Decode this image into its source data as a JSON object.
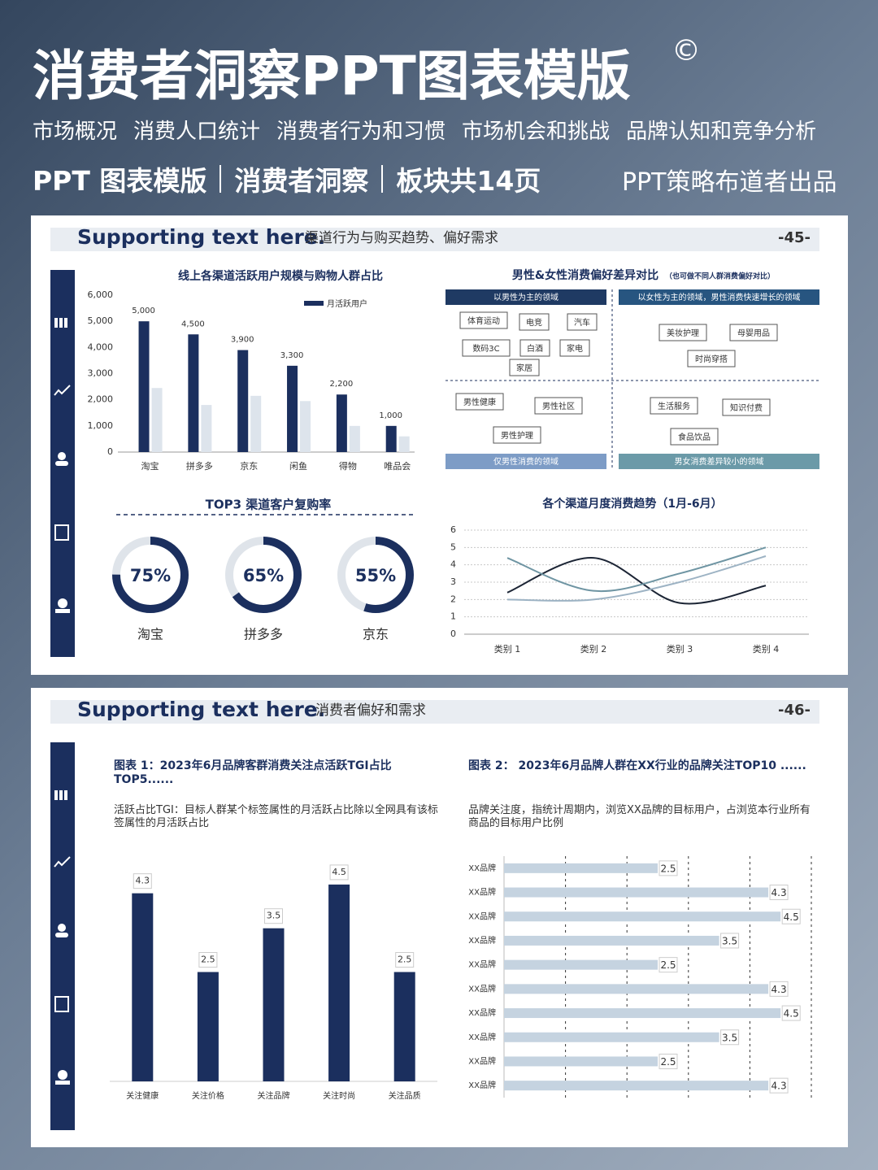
{
  "header": {
    "title": "消费者洞察PPT图表模版",
    "mark": "©",
    "topics": [
      "市场概况",
      "消费人口统计",
      "消费者行为和习惯",
      "市场机会和挑战",
      "品牌认知和竞争分析"
    ],
    "tags": [
      "PPT 图表模版",
      "消费者洞察",
      "板块共14页"
    ],
    "credit": "PPT策略布道者出品"
  },
  "slides": [
    {
      "heading": "Supporting text here.",
      "subheading": "渠道行为与购买趋势、偏好需求",
      "page": "-45-"
    },
    {
      "heading": "Supporting text here.",
      "subheading": "消费者偏好和需求",
      "page": "-46-"
    }
  ],
  "matrix": {
    "title": "男性&女性消费偏好差异对比",
    "note": "（也可做不同人群消费偏好对比）",
    "quadrants": [
      {
        "label": "以男性为主的领域",
        "items": [
          "体育运动",
          "电竞",
          "汽车",
          "数码3C",
          "白酒",
          "家电",
          "家居"
        ]
      },
      {
        "label": "以女性为主的领域，男性消费快速增长的领域",
        "items": [
          "美妆护理",
          "母婴用品",
          "时尚穿搭"
        ]
      },
      {
        "label": "仅男性消费的领域",
        "items": [
          "男性健康",
          "男性社区",
          "男性护理"
        ]
      },
      {
        "label": "男女消费差异较小的领域",
        "items": [
          "生活服务",
          "知识付费",
          "食品饮品"
        ]
      }
    ]
  },
  "chart_data": [
    {
      "type": "bar",
      "title": "线上各渠道活跃用户规模与购物人群占比",
      "categories": [
        "淘宝",
        "拼多多",
        "京东",
        "闲鱼",
        "得物",
        "唯品会"
      ],
      "series": [
        {
          "name": "月活跃用户",
          "color": "#1b2f5e",
          "values": [
            5000,
            4500,
            3900,
            3300,
            2200,
            1000
          ],
          "value_labels": [
            "5,000",
            "4,500",
            "3,900",
            "3,300",
            "2,200",
            "1,000"
          ]
        },
        {
          "color": "#dde4ec",
          "values": [
            2450,
            1800,
            2150,
            1950,
            1000,
            600
          ]
        }
      ],
      "ylim": [
        0,
        6000
      ],
      "yticks": [
        0,
        {
          "value": 1000,
          "label": "1,000"
        },
        {
          "value": 2000,
          "label": "2,000"
        },
        {
          "value": 3000,
          "label": "3,000"
        },
        {
          "value": 4000,
          "label": "4,000"
        },
        {
          "value": 5000,
          "label": "5,000"
        },
        {
          "value": 6000,
          "label": "6,000"
        }
      ]
    },
    {
      "type": "donut",
      "title": "TOP3 渠道客户复购率",
      "categories": [
        "淘宝",
        "拼多多",
        "京东"
      ],
      "values": [
        75,
        65,
        55
      ],
      "value_labels": [
        "75%",
        "65%",
        "55%"
      ],
      "color": "#1b2f5e"
    },
    {
      "type": "line",
      "title": "各个渠道月度消费趋势（1月-6月）",
      "categories": [
        "类别 1",
        "类别 2",
        "类别 3",
        "类别 4"
      ],
      "series": [
        {
          "color": "#1c2535",
          "values": [
            2.4,
            4.4,
            1.8,
            2.8
          ]
        },
        {
          "color": "#6f95a3",
          "values": [
            4.4,
            2.5,
            3.5,
            5.0
          ]
        },
        {
          "color": "#9db3c4",
          "values": [
            2.0,
            2.0,
            3.0,
            4.5
          ]
        }
      ],
      "ylim": [
        0,
        6
      ],
      "yticks": [
        0,
        1,
        2,
        3,
        4,
        5,
        6
      ],
      "grid": true
    },
    {
      "type": "bar",
      "title": "图表 1：2023年6月品牌客群消费关注点活跃TGI占比TOP5......",
      "subtitle": "活跃占比TGI：目标人群某个标签属性的月活跃占比除以全网具有该标签属性的月活跃占比",
      "categories": [
        "关注健康",
        "关注价格",
        "关注品牌",
        "关注时尚",
        "关注品质"
      ],
      "values": [
        4.3,
        2.5,
        3.5,
        4.5,
        2.5
      ],
      "color": "#1b2f5e",
      "ylim": [
        0,
        5
      ]
    },
    {
      "type": "hbar",
      "title": "图表 2： 2023年6月品牌人群在XX行业的品牌关注TOP10 ......",
      "subtitle": "品牌关注度，指统计周期内，浏览XX品牌的目标用户，占浏览本行业所有商品的目标用户比例",
      "categories": [
        "XX品牌",
        "XX品牌",
        "XX品牌",
        "XX品牌",
        "XX品牌",
        "XX品牌",
        "XX品牌",
        "XX品牌",
        "XX品牌",
        "XX品牌"
      ],
      "values": [
        2.5,
        4.3,
        4.5,
        3.5,
        2.5,
        4.3,
        4.5,
        3.5,
        2.5,
        4.3
      ],
      "color": "#c5d3e0",
      "xlim": [
        0,
        5
      ],
      "xticks": [
        0,
        1,
        2,
        3,
        4,
        5
      ],
      "grid": true
    }
  ]
}
